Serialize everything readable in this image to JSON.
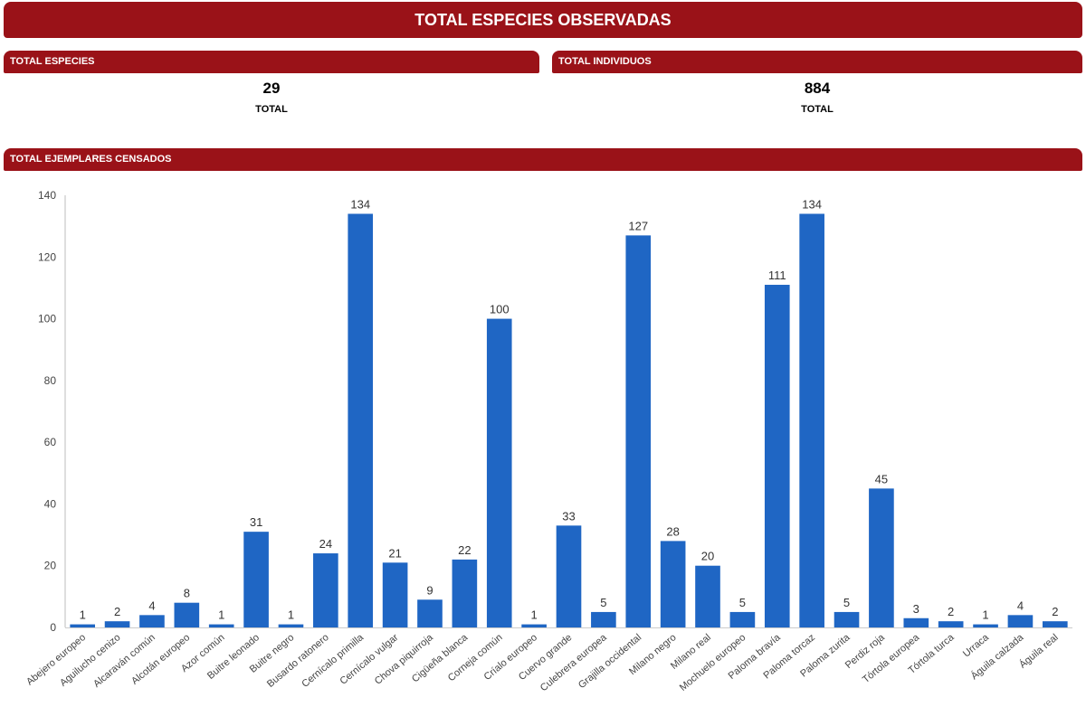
{
  "header": {
    "title": "TOTAL ESPECIES OBSERVADAS"
  },
  "kpis": [
    {
      "title": "TOTAL ESPECIES",
      "value": "29",
      "label": "TOTAL"
    },
    {
      "title": "TOTAL INDIVIDUOS",
      "value": "884",
      "label": "TOTAL"
    }
  ],
  "chart_section": {
    "title": "TOTAL EJEMPLARES CENSADOS"
  },
  "colors": {
    "header_bg": "#9a1218",
    "bar": "#1f66c4"
  },
  "chart_data": {
    "type": "bar",
    "title": "TOTAL EJEMPLARES CENSADOS",
    "xlabel": "",
    "ylabel": "",
    "ylim": [
      0,
      140
    ],
    "yticks": [
      0,
      20,
      40,
      60,
      80,
      100,
      120,
      140
    ],
    "grid": false,
    "categories": [
      "Abejero europeo",
      "Aguilucho cenizo",
      "Alcaraván común",
      "Alcotán europeo",
      "Azor común",
      "Buitre leonado",
      "Buitre negro",
      "Busardo ratonero",
      "Cernícalo primilla",
      "Cernícalo vulgar",
      "Chova piquirroja",
      "Cigüeña blanca",
      "Corneja común",
      "Críalo europeo",
      "Cuervo grande",
      "Culebrera europea",
      "Grajilla occidental",
      "Milano negro",
      "Milano real",
      "Mochuelo europeo",
      "Paloma bravía",
      "Paloma torcaz",
      "Paloma zurita",
      "Perdiz roja",
      "Tórtola europea",
      "Tórtola turca",
      "Urraca",
      "Águila calzada",
      "Águila real"
    ],
    "values": [
      1,
      2,
      4,
      8,
      1,
      31,
      1,
      24,
      134,
      21,
      9,
      22,
      100,
      1,
      33,
      5,
      127,
      28,
      20,
      5,
      111,
      134,
      5,
      45,
      3,
      2,
      1,
      4,
      2
    ]
  }
}
